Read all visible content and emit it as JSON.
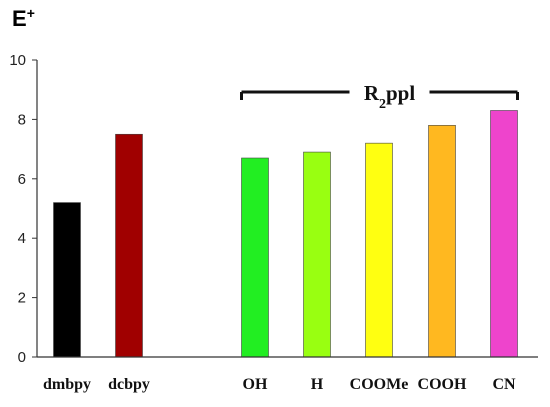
{
  "chart_data": {
    "type": "bar",
    "ylabel": "E",
    "ylabel_sup": "+",
    "ylim": [
      0,
      10
    ],
    "yticks": [
      "0",
      "2",
      "4",
      "6",
      "8",
      "10"
    ],
    "grid": false,
    "categories": [
      "dmbpy",
      "dcbpy",
      "OH",
      "H",
      "COOMe",
      "COOH",
      "CN"
    ],
    "values": [
      5.2,
      7.5,
      6.7,
      6.9,
      7.2,
      7.8,
      8.3
    ],
    "colors": [
      "#000000",
      "#a00000",
      "#22ee22",
      "#99ff11",
      "#ffff11",
      "#ffb820",
      "#ee44cc"
    ],
    "group_annotation": {
      "label_main": "R",
      "label_sub": "2",
      "label_rest": "ppl",
      "covers": [
        "OH",
        "H",
        "COOMe",
        "COOH",
        "CN"
      ]
    }
  }
}
